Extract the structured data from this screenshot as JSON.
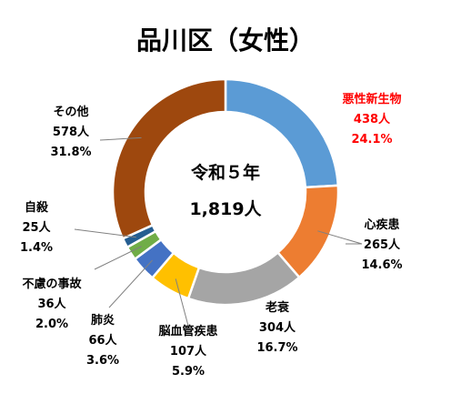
{
  "chart_data": {
    "type": "pie",
    "title": "品川区（女性）",
    "center_label": {
      "line1": "令和５年",
      "line2": "1,819人"
    },
    "slices": [
      {
        "name": "悪性新生物",
        "count_label": "438人",
        "percent_label": "24.1%",
        "value": 438,
        "color": "#5B9BD5",
        "label_color": "#FF0000"
      },
      {
        "name": "心疾患",
        "count_label": "265人",
        "percent_label": "14.6%",
        "value": 265,
        "color": "#ED7D31",
        "label_color": "#000000"
      },
      {
        "name": "老衰",
        "count_label": "304人",
        "percent_label": "16.7%",
        "value": 304,
        "color": "#A5A5A5",
        "label_color": "#000000"
      },
      {
        "name": "脳血管疾患",
        "count_label": "107人",
        "percent_label": "5.9%",
        "value": 107,
        "color": "#FFC000",
        "label_color": "#000000"
      },
      {
        "name": "肺炎",
        "count_label": "66人",
        "percent_label": "3.6%",
        "value": 66,
        "color": "#4472C4",
        "label_color": "#000000"
      },
      {
        "name": "不慮の事故",
        "count_label": "36人",
        "percent_label": "2.0%",
        "value": 36,
        "color": "#70AD47",
        "label_color": "#000000"
      },
      {
        "name": "自殺",
        "count_label": "25人",
        "percent_label": "1.4%",
        "value": 25,
        "color": "#255E91",
        "label_color": "#000000"
      },
      {
        "name": "その他",
        "count_label": "578人",
        "percent_label": "31.8%",
        "value": 578,
        "color": "#9E480E",
        "label_color": "#000000"
      }
    ]
  }
}
